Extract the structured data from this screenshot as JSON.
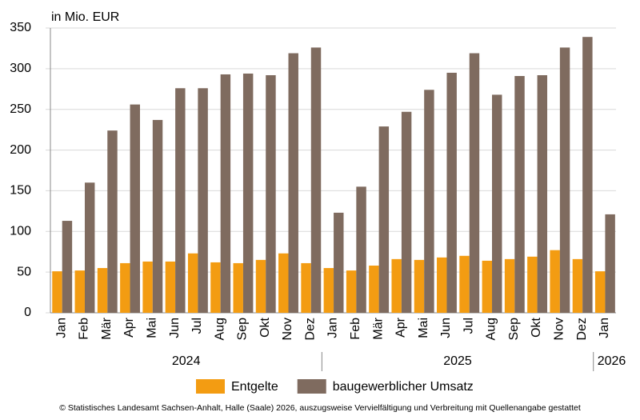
{
  "chart_data": {
    "type": "bar",
    "y_label": "in Mio. EUR",
    "categories": [
      "Jan",
      "Feb",
      "Mär",
      "Apr",
      "Mai",
      "Jun",
      "Jul",
      "Aug",
      "Sep",
      "Okt",
      "Nov",
      "Dez",
      "Jan",
      "Feb",
      "Mär",
      "Apr",
      "Mai",
      "Jun",
      "Jul",
      "Aug",
      "Sep",
      "Okt",
      "Nov",
      "Dez",
      "Jan"
    ],
    "groups": [
      "2024",
      "2025",
      "2026"
    ],
    "series": [
      {
        "name": "Entgelte",
        "color": "#f39c12",
        "values": [
          51,
          52,
          55,
          61,
          63,
          63,
          73,
          62,
          61,
          65,
          73,
          61,
          55,
          52,
          58,
          66,
          65,
          68,
          70,
          64,
          66,
          69,
          77,
          66,
          51
        ]
      },
      {
        "name": "baugewerblicher Umsatz",
        "color": "#7f6b5f",
        "values": [
          113,
          160,
          224,
          256,
          237,
          276,
          276,
          293,
          294,
          292,
          319,
          326,
          123,
          155,
          229,
          247,
          274,
          295,
          319,
          268,
          291,
          292,
          326,
          339,
          121
        ]
      }
    ],
    "ylim": [
      0,
      350
    ],
    "yticks": [
      0,
      50,
      100,
      150,
      200,
      250,
      300,
      350
    ],
    "grid": true,
    "source": "© Statistisches Landesamt Sachsen-Anhalt, Halle (Saale) 2026, auszugsweise Vervielfältigung und Verbreitung mit Quellenangabe gestattet"
  }
}
